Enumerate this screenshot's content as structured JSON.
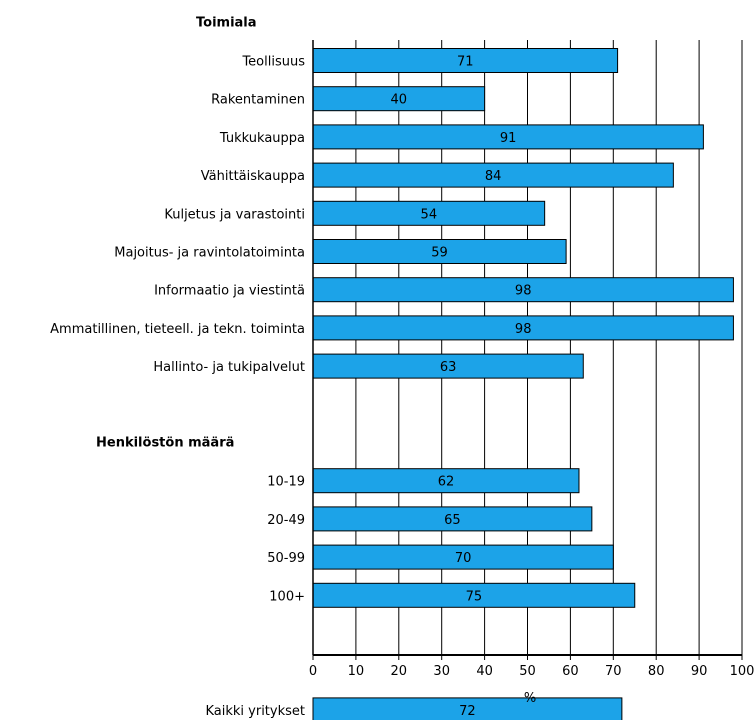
{
  "chart_data": {
    "type": "bar",
    "orientation": "horizontal",
    "groups": [
      {
        "label": "Toimiala",
        "categories": [
          "Teollisuus",
          "Rakentaminen",
          "Tukkukauppa",
          "Vähittäiskauppa",
          "Kuljetus ja varastointi",
          "Majoitus- ja ravintolatoiminta",
          "Informaatio ja viestintä",
          "Ammatillinen, tieteell. ja tekn. toiminta",
          "Hallinto- ja tukipalvelut"
        ],
        "values": [
          71,
          40,
          91,
          84,
          54,
          59,
          98,
          98,
          63
        ]
      },
      {
        "label": "Henkilöstön määrä",
        "categories": [
          "10-19",
          "20-49",
          "50-99",
          "100+"
        ],
        "values": [
          62,
          65,
          70,
          75
        ]
      },
      {
        "label": "",
        "categories": [
          "Kaikki yritykset"
        ],
        "values": [
          72
        ]
      }
    ],
    "xlabel": "%",
    "xlim": [
      0,
      100
    ],
    "xticks": [
      "0",
      "10",
      "20",
      "30",
      "40",
      "50",
      "60",
      "70",
      "80",
      "90",
      "100"
    ],
    "grid": true,
    "bar_color": "#1ca3e8"
  }
}
